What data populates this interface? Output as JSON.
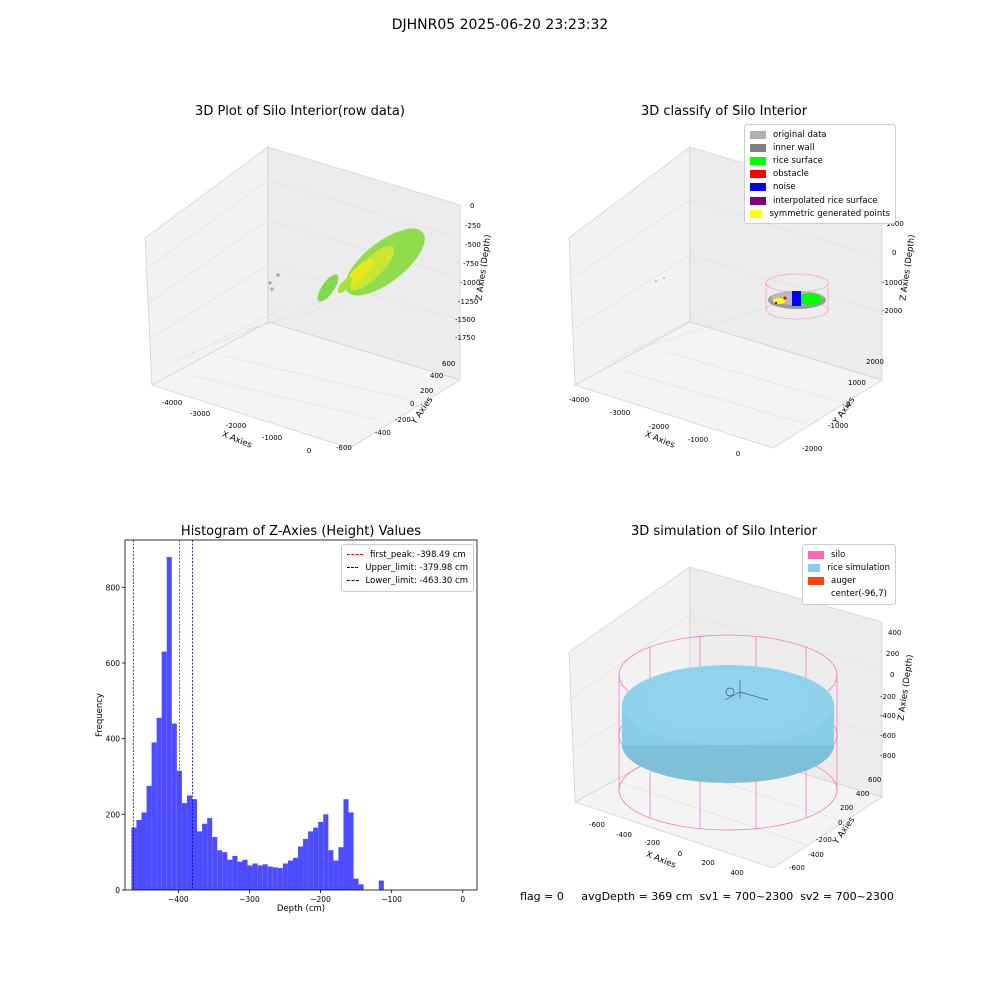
{
  "suptitle": "DJHNR05 2025-06-20 23:23:32",
  "footer": "flag = 0     avgDepth = 369 cm  sv1 = 700~2300  sv2 = 700~2300",
  "chart_data": [
    {
      "type": "scatter",
      "title": "3D Plot of Silo Interior(row data)",
      "xlabel": "X Axies",
      "ylabel": "Y Axies",
      "zlabel": "Z Axies (Depth)",
      "x_ticks": [
        "-4000",
        "-3000",
        "-2000",
        "-1000",
        "0"
      ],
      "y_ticks": [
        "-600",
        "-400",
        "-200",
        "0",
        "200",
        "400",
        "600"
      ],
      "z_ticks": [
        "0",
        "-250",
        "-500",
        "-750",
        "-1000",
        "-1250",
        "-1500",
        "-1750"
      ],
      "colors": [
        "#7fd94f",
        "#c8e632",
        "#e8e820",
        "#9aa0b0"
      ]
    },
    {
      "type": "scatter",
      "title": "3D classify of Silo Interior",
      "xlabel": "X Axies",
      "ylabel": "Y Axies",
      "zlabel": "Z Axies (Depth)",
      "x_ticks": [
        "-4000",
        "-3000",
        "-2000",
        "-1000",
        "0"
      ],
      "y_ticks": [
        "-2000",
        "-1000",
        "0",
        "1000",
        "2000"
      ],
      "z_ticks": [
        "1000",
        "0",
        "-1000",
        "-2000"
      ],
      "legend": [
        {
          "label": "original data",
          "color": "#b0b0b0"
        },
        {
          "label": "inner wall",
          "color": "#808080"
        },
        {
          "label": "rice surface",
          "color": "#00ff00"
        },
        {
          "label": "obstacle",
          "color": "#ff0000"
        },
        {
          "label": "noise",
          "color": "#0000ff"
        },
        {
          "label": "interpolated rice surface",
          "color": "#800080"
        },
        {
          "label": "symmetric generated points",
          "color": "#ffff00"
        }
      ]
    },
    {
      "type": "bar",
      "title": "Histogram of Z-Axies (Height) Values",
      "xlabel": "Depth (cm)",
      "ylabel": "Frequency",
      "xlim": [
        -475,
        20
      ],
      "ylim": [
        0,
        925
      ],
      "x_ticks": [
        -400,
        -300,
        -200,
        -100,
        0
      ],
      "x_tick_labels": [
        "−400",
        "−300",
        "−200",
        "−100",
        "0"
      ],
      "y_ticks": [
        0,
        200,
        400,
        600,
        800
      ],
      "bar_color": "#4d4dff",
      "bin_start": -466,
      "bin_width": 7.1,
      "values": [
        165,
        185,
        205,
        275,
        390,
        455,
        630,
        880,
        440,
        315,
        230,
        250,
        240,
        155,
        175,
        190,
        140,
        105,
        100,
        80,
        90,
        75,
        80,
        65,
        70,
        65,
        68,
        62,
        60,
        58,
        70,
        78,
        85,
        115,
        135,
        155,
        165,
        180,
        200,
        105,
        78,
        113,
        240,
        205,
        30,
        15,
        0,
        0,
        0,
        25
      ],
      "vlines": [
        {
          "label": "first_peak: -398.49 cm",
          "x": -398.49,
          "color": "#ff0000"
        },
        {
          "label": "Upper_limit: -379.98 cm",
          "x": -379.98,
          "color": "#0000cc"
        },
        {
          "label": "Lower_limit: -463.30 cm",
          "x": -463.3,
          "color": "#0000cc"
        }
      ]
    },
    {
      "type": "scatter",
      "title": "3D simulation of Silo Interior",
      "xlabel": "X Axies",
      "ylabel": "Y Axies",
      "zlabel": "Z Axies (Depth)",
      "x_ticks": [
        "-600",
        "-400",
        "-200",
        "0",
        "200",
        "400"
      ],
      "y_ticks": [
        "-600",
        "-400",
        "-200",
        "0",
        "200",
        "400",
        "600"
      ],
      "z_ticks": [
        "400",
        "200",
        "0",
        "-200",
        "-400",
        "-600",
        "-800"
      ],
      "legend": [
        {
          "label": "silo",
          "color": "#ff69b4"
        },
        {
          "label": "rice simulation",
          "color": "#87ceeb"
        },
        {
          "label": "auger",
          "color": "#ff4500"
        },
        {
          "label": "center(-96,7)",
          "color": ""
        }
      ]
    }
  ]
}
